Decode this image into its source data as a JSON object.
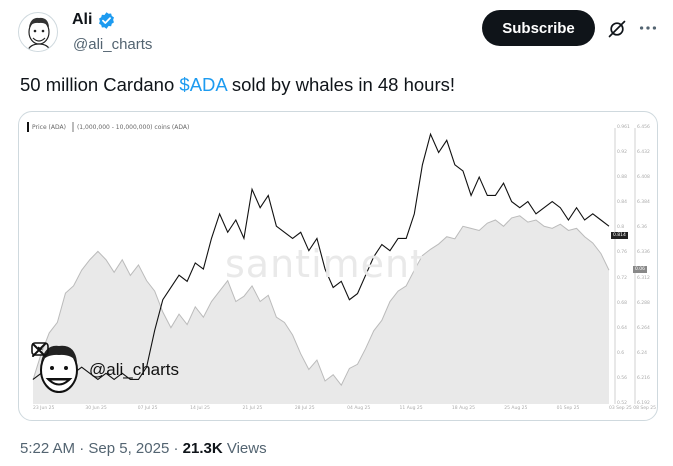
{
  "author": {
    "name": "Ali",
    "handle": "@ali_charts",
    "verified": true
  },
  "header": {
    "subscribe_label": "Subscribe"
  },
  "tweet": {
    "text_before": "50 million Cardano ",
    "cashtag": "$ADA",
    "text_after": " sold by whales in 48 hours!"
  },
  "media": {
    "watermark": "santiment",
    "brand_handle": "@ali_charts",
    "legend": [
      "Price (ADA)",
      "(1,000,000 - 10,000,000) coins (ADA)"
    ],
    "price_tag": "0.814",
    "holding_tag": "0.06",
    "colors": {
      "price_line": "#111111",
      "holdings_fill": "#e9e9e9",
      "holdings_line": "#bbbbbb",
      "tag_dark": "#222222",
      "tag_grey": "#888888"
    }
  },
  "chart_data": {
    "type": "line",
    "x_labels": [
      "23 Jun 25",
      "30 Jun 25",
      "07 Jul 25",
      "14 Jul 25",
      "21 Jul 25",
      "28 Jul 25",
      "04 Aug 25",
      "11 Aug 25",
      "18 Aug 25",
      "25 Aug 25",
      "01 Sep 25",
      "03 Sep 25 08 Sep 25"
    ],
    "y_labels_right": [
      "0.961",
      "0.92",
      "0.88",
      "0.84",
      "0.8",
      "0.76",
      "0.72",
      "0.68",
      "0.64",
      "0.6",
      "0.56",
      "0.52"
    ],
    "y_labels_right2": [
      "6.456",
      "6.432",
      "6.408",
      "6.384",
      "6.36",
      "6.336",
      "6.312",
      "6.288",
      "6.264",
      "6.24",
      "6.216",
      "6.192"
    ],
    "series": [
      {
        "name": "Price (ADA)",
        "values": [
          0.56,
          0.57,
          0.56,
          0.58,
          0.56,
          0.57,
          0.58,
          0.57,
          0.56,
          0.57,
          0.56,
          0.57,
          0.56,
          0.56,
          0.58,
          0.64,
          0.69,
          0.71,
          0.73,
          0.72,
          0.75,
          0.74,
          0.79,
          0.83,
          0.8,
          0.82,
          0.79,
          0.87,
          0.84,
          0.86,
          0.81,
          0.8,
          0.79,
          0.8,
          0.77,
          0.79,
          0.74,
          0.71,
          0.72,
          0.69,
          0.7,
          0.73,
          0.76,
          0.78,
          0.77,
          0.79,
          0.79,
          0.83,
          0.91,
          0.96,
          0.93,
          0.95,
          0.91,
          0.9,
          0.86,
          0.89,
          0.86,
          0.86,
          0.88,
          0.85,
          0.84,
          0.85,
          0.83,
          0.84,
          0.85,
          0.84,
          0.82,
          0.84,
          0.82,
          0.83,
          0.82,
          0.81
        ]
      },
      {
        "name": "(1,000,000 - 10,000,000) coins (ADA)",
        "values": [
          6.215,
          6.24,
          6.26,
          6.27,
          6.298,
          6.305,
          6.32,
          6.33,
          6.338,
          6.33,
          6.318,
          6.33,
          6.315,
          6.325,
          6.31,
          6.3,
          6.28,
          6.265,
          6.278,
          6.268,
          6.285,
          6.275,
          6.29,
          6.3,
          6.31,
          6.29,
          6.295,
          6.305,
          6.29,
          6.296,
          6.275,
          6.27,
          6.258,
          6.24,
          6.225,
          6.234,
          6.214,
          6.22,
          6.21,
          6.226,
          6.23,
          6.245,
          6.262,
          6.272,
          6.29,
          6.3,
          6.305,
          6.32,
          6.334,
          6.34,
          6.345,
          6.352,
          6.35,
          6.362,
          6.36,
          6.358,
          6.365,
          6.368,
          6.362,
          6.37,
          6.372,
          6.366,
          6.368,
          6.362,
          6.36,
          6.364,
          6.358,
          6.36,
          6.352,
          6.346,
          6.336,
          6.32
        ]
      }
    ]
  },
  "footer": {
    "time": "5:22 AM",
    "sep": "·",
    "date": "Sep 5, 2025",
    "views_count": "21.3K",
    "views_label": "Views"
  }
}
